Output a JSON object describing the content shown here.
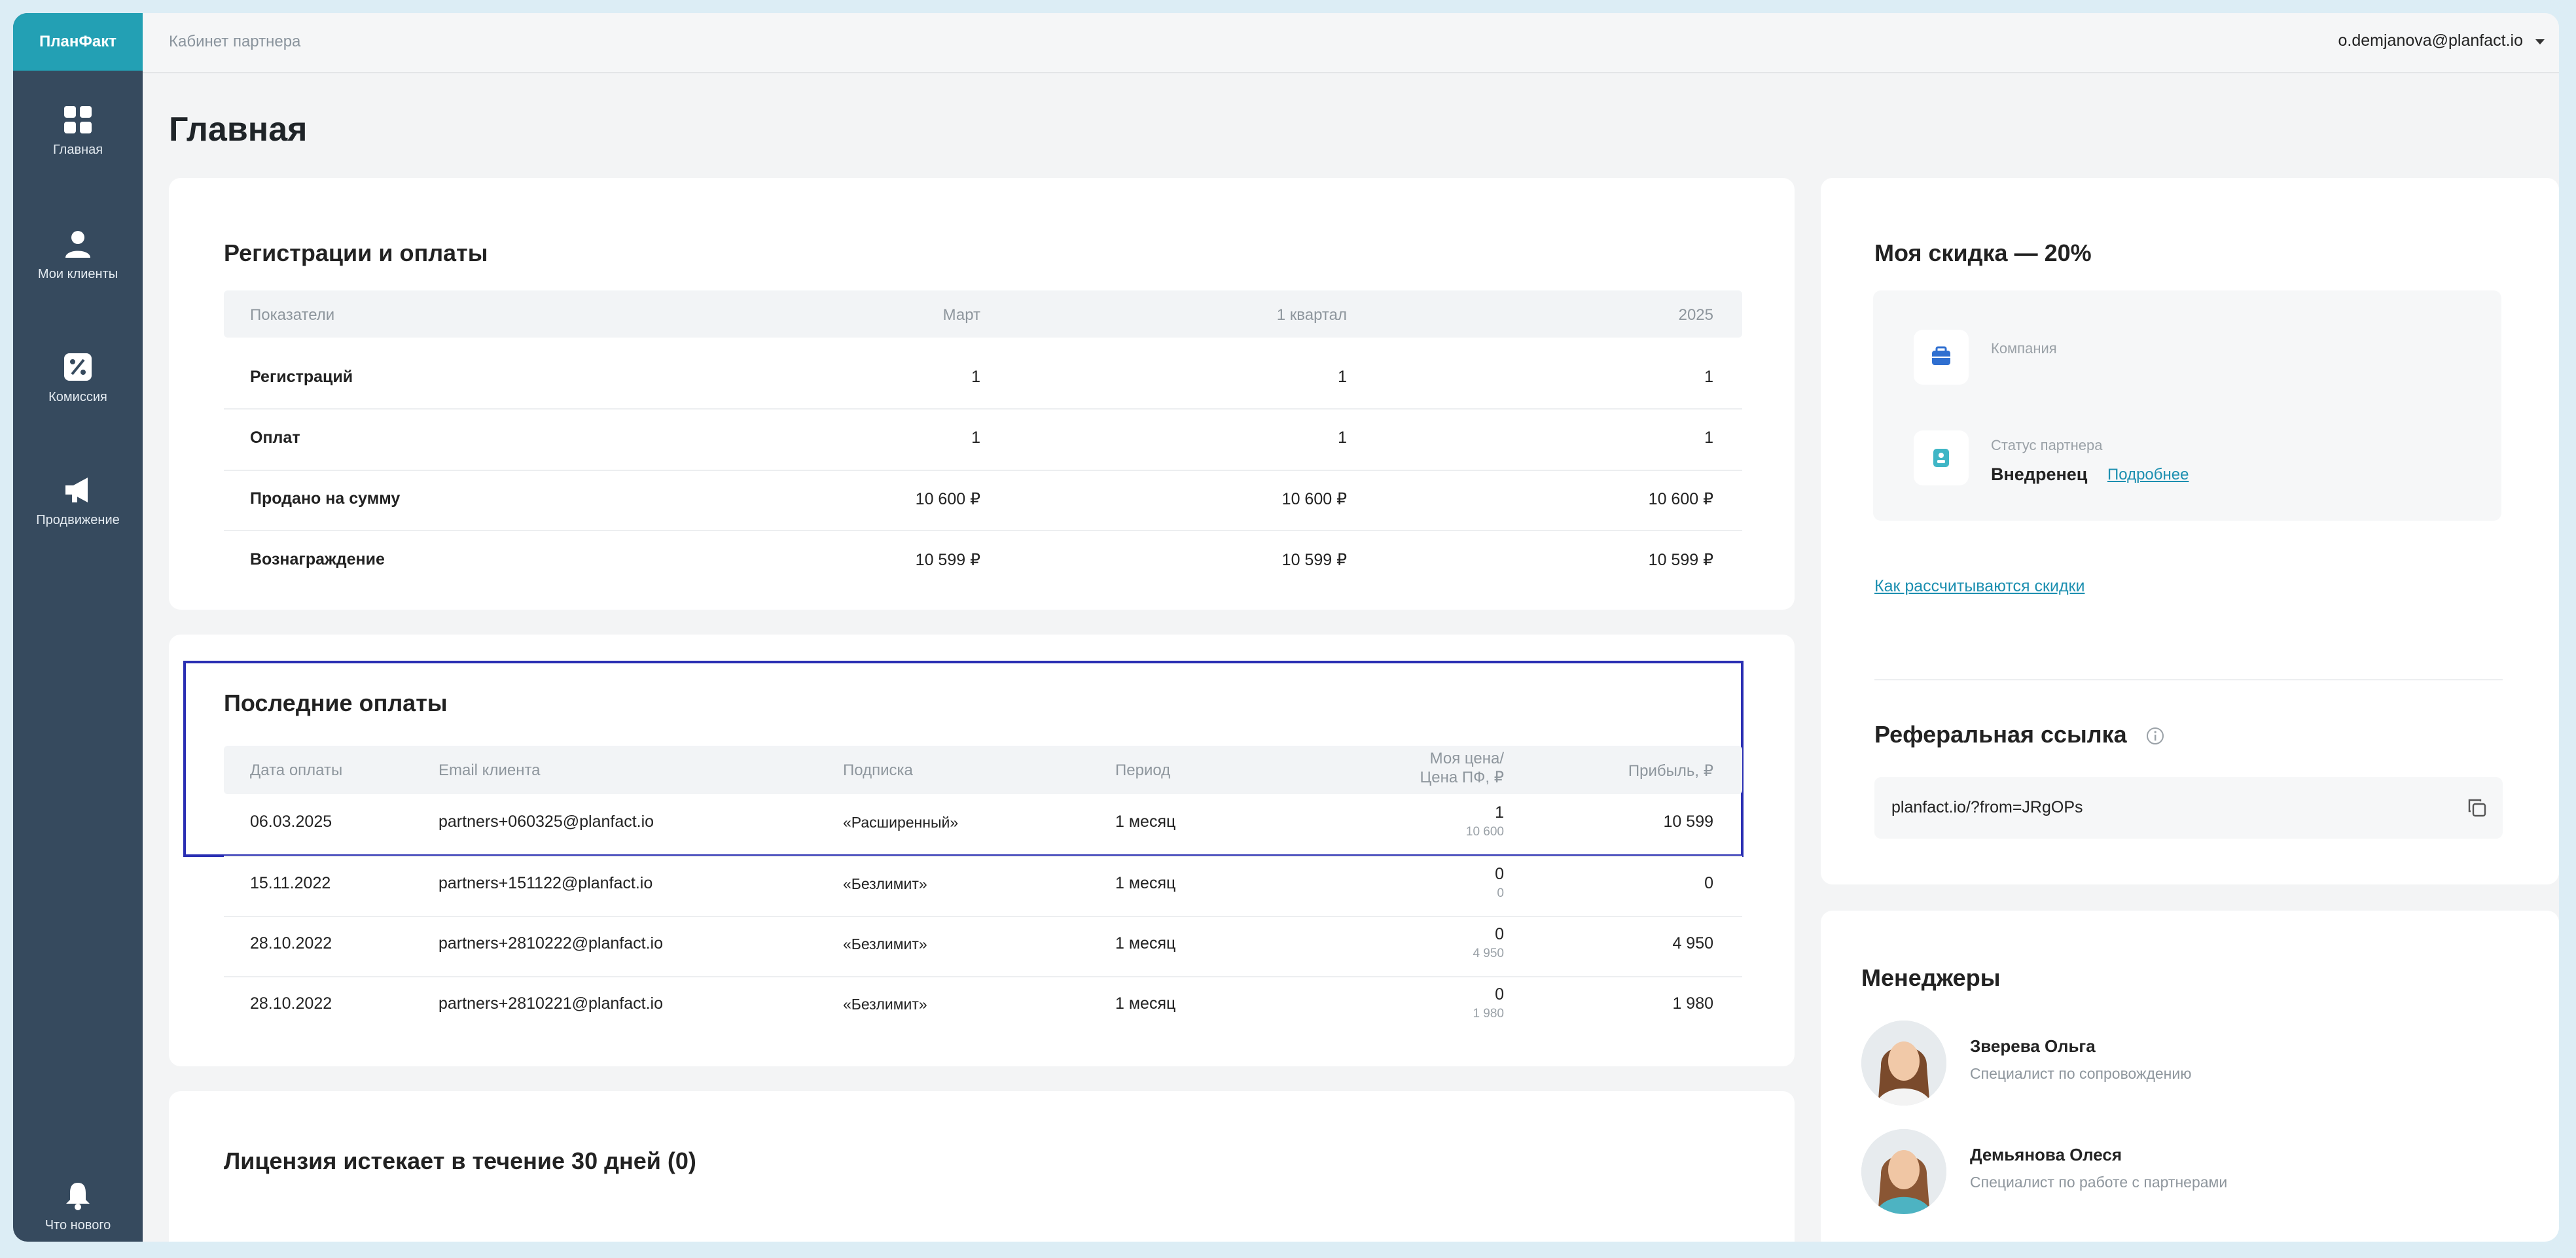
{
  "brand": {
    "logo": "ПланФакт"
  },
  "sidebar": {
    "items": [
      {
        "label": "Главная",
        "icon": "grid-icon"
      },
      {
        "label": "Мои клиенты",
        "icon": "user-icon"
      },
      {
        "label": "Комиссия",
        "icon": "percent-icon"
      },
      {
        "label": "Продвижение",
        "icon": "megaphone-icon"
      },
      {
        "label": "Что нового",
        "icon": "bell-icon"
      }
    ]
  },
  "header": {
    "breadcrumb": "Кабинет партнера",
    "user_email": "o.demjanova@planfact.io"
  },
  "page": {
    "title": "Главная"
  },
  "registrations": {
    "title": "Регистрации и оплаты",
    "columns": [
      "Показатели",
      "Март",
      "1 квартал",
      "2025"
    ],
    "rows": [
      {
        "label": "Регистраций",
        "values": [
          "1",
          "1",
          "1"
        ]
      },
      {
        "label": "Оплат",
        "values": [
          "1",
          "1",
          "1"
        ]
      },
      {
        "label": "Продано на сумму",
        "values": [
          "10 600 ₽",
          "10 600 ₽",
          "10 600 ₽"
        ]
      },
      {
        "label": "Вознаграждение",
        "values": [
          "10 599 ₽",
          "10 599 ₽",
          "10 599 ₽"
        ]
      }
    ]
  },
  "payments": {
    "title": "Последние оплаты",
    "columns": {
      "date": "Дата оплаты",
      "email": "Email клиента",
      "plan": "Подписка",
      "period": "Период",
      "price_line1": "Моя цена/",
      "price_line2": "Цена ПФ, ₽",
      "profit": "Прибыль, ₽"
    },
    "rows": [
      {
        "date": "06.03.2025",
        "email": "partners+060325@planfact.io",
        "plan": "«Расширенный»",
        "period": "1 месяц",
        "price": "1",
        "pf_price": "10 600",
        "profit": "10 599"
      },
      {
        "date": "15.11.2022",
        "email": "partners+151122@planfact.io",
        "plan": "«Безлимит»",
        "period": "1 месяц",
        "price": "0",
        "pf_price": "0",
        "profit": "0"
      },
      {
        "date": "28.10.2022",
        "email": "partners+2810222@planfact.io",
        "plan": "«Безлимит»",
        "period": "1 месяц",
        "price": "0",
        "pf_price": "4 950",
        "profit": "4 950"
      },
      {
        "date": "28.10.2022",
        "email": "partners+2810221@planfact.io",
        "plan": "«Безлимит»",
        "period": "1 месяц",
        "price": "0",
        "pf_price": "1 980",
        "profit": "1 980"
      }
    ]
  },
  "license": {
    "title": "Лицензия истекает в течение 30 дней (0)"
  },
  "discount": {
    "title": "Моя скидка — 20%",
    "company_label": "Компания",
    "status_label": "Статус партнера",
    "status_value": "Внедренец",
    "more_link": "Подробнее",
    "how_link": "Как рассчитываются скидки"
  },
  "referral": {
    "title": "Реферальная ссылка",
    "link": "planfact.io/?from=JRgOPs"
  },
  "managers": {
    "title": "Менеджеры",
    "items": [
      {
        "name": "Зверева Ольга",
        "role": "Специалист по сопровождению"
      },
      {
        "name": "Демьянова Олеся",
        "role": "Специалист по работе с партнерами"
      }
    ]
  },
  "colors": {
    "sidebar": "#364a5e",
    "brand": "#23a0b4",
    "accent_link": "#1c8fb0",
    "highlight_border": "#2a2fb3"
  }
}
